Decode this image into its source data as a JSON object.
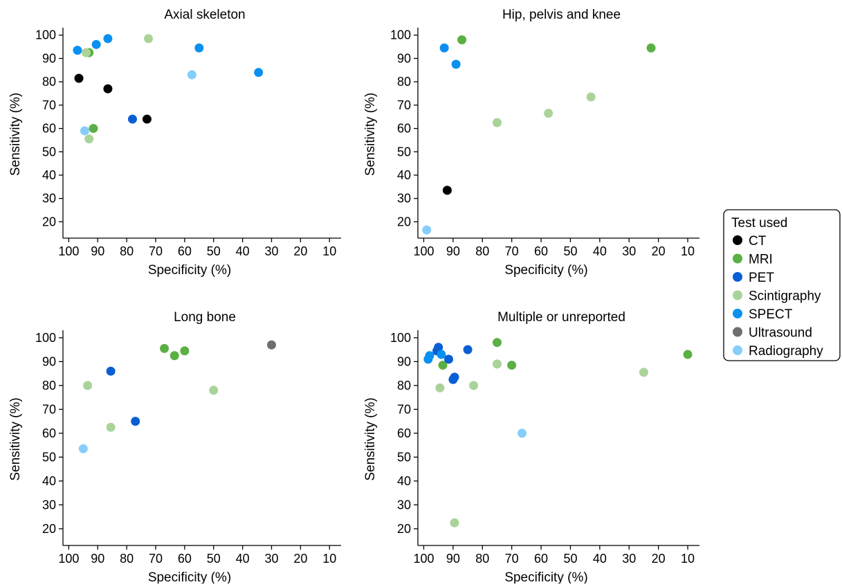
{
  "chart_data": {
    "type": "scatter",
    "x_axis_reversed": true,
    "grid": false,
    "legend": {
      "title": "Test used",
      "placement": "right",
      "entries": [
        {
          "name": "CT",
          "color": "#000000"
        },
        {
          "name": "MRI",
          "color": "#5bb044"
        },
        {
          "name": "PET",
          "color": "#0a5fd4"
        },
        {
          "name": "Scintigraphy",
          "color": "#aad39a"
        },
        {
          "name": "SPECT",
          "color": "#0a91ef"
        },
        {
          "name": "Ultrasound",
          "color": "#6e6e6e"
        },
        {
          "name": "Radiography",
          "color": "#86cdfa"
        }
      ]
    },
    "panels": [
      {
        "title": "Axial skeleton",
        "xlabel": "Specificity (%)",
        "ylabel": "Sensitivity (%)",
        "xlim": [
          102,
          6
        ],
        "ylim": [
          13,
          102
        ],
        "xticks": [
          100,
          90,
          80,
          70,
          60,
          50,
          40,
          30,
          20,
          10
        ],
        "yticks": [
          20,
          30,
          40,
          50,
          60,
          70,
          80,
          90,
          100
        ],
        "series": [
          {
            "name": "CT",
            "points": [
              [
                96.5,
                81.5
              ],
              [
                86.5,
                77
              ],
              [
                73,
                64
              ]
            ]
          },
          {
            "name": "MRI",
            "points": [
              [
                93,
                92.5
              ],
              [
                91.5,
                60
              ]
            ]
          },
          {
            "name": "PET",
            "points": [
              [
                78,
                64
              ]
            ]
          },
          {
            "name": "Scintigraphy",
            "points": [
              [
                94,
                92.5
              ],
              [
                72.5,
                98.5
              ],
              [
                93,
                55.5
              ]
            ]
          },
          {
            "name": "SPECT",
            "points": [
              [
                97,
                93.5
              ],
              [
                90.5,
                96
              ],
              [
                86.5,
                98.5
              ],
              [
                55,
                94.5
              ],
              [
                34.5,
                84
              ]
            ]
          },
          {
            "name": "Radiography",
            "points": [
              [
                57.5,
                83
              ],
              [
                94.5,
                59
              ]
            ]
          }
        ]
      },
      {
        "title": "Hip, pelvis and knee",
        "xlabel": "Specificity (%)",
        "ylabel": "Sensitivity (%)",
        "xlim": [
          102,
          6
        ],
        "ylim": [
          13,
          102
        ],
        "xticks": [
          100,
          90,
          80,
          70,
          60,
          50,
          40,
          30,
          20,
          10
        ],
        "yticks": [
          20,
          30,
          40,
          50,
          60,
          70,
          80,
          90,
          100
        ],
        "series": [
          {
            "name": "CT",
            "points": [
              [
                92,
                33.5
              ]
            ]
          },
          {
            "name": "MRI",
            "points": [
              [
                87,
                98
              ],
              [
                22.5,
                94.5
              ]
            ]
          },
          {
            "name": "Scintigraphy",
            "points": [
              [
                75,
                62.5
              ],
              [
                57.5,
                66.5
              ],
              [
                43,
                73.5
              ]
            ]
          },
          {
            "name": "SPECT",
            "points": [
              [
                93,
                94.5
              ],
              [
                89,
                87.5
              ]
            ]
          },
          {
            "name": "Radiography",
            "points": [
              [
                99,
                16.5
              ]
            ]
          }
        ]
      },
      {
        "title": "Long bone",
        "xlabel": "Specificity (%)",
        "ylabel": "Sensitivity (%)",
        "xlim": [
          102,
          6
        ],
        "ylim": [
          13,
          102
        ],
        "xticks": [
          100,
          90,
          80,
          70,
          60,
          50,
          40,
          30,
          20,
          10
        ],
        "yticks": [
          20,
          30,
          40,
          50,
          60,
          70,
          80,
          90,
          100
        ],
        "series": [
          {
            "name": "MRI",
            "points": [
              [
                67,
                95.5
              ],
              [
                63.5,
                92.5
              ],
              [
                60,
                94.5
              ]
            ]
          },
          {
            "name": "PET",
            "points": [
              [
                85.5,
                86
              ],
              [
                77,
                65
              ]
            ]
          },
          {
            "name": "Scintigraphy",
            "points": [
              [
                93.5,
                80
              ],
              [
                85.5,
                62.5
              ],
              [
                50,
                78
              ]
            ]
          },
          {
            "name": "Ultrasound",
            "points": [
              [
                30,
                97
              ]
            ]
          },
          {
            "name": "Radiography",
            "points": [
              [
                95,
                53.5
              ]
            ]
          }
        ]
      },
      {
        "title": "Multiple or unreported",
        "xlabel": "Specificity (%)",
        "ylabel": "Sensitivity (%)",
        "xlim": [
          102,
          6
        ],
        "ylim": [
          13,
          102
        ],
        "xticks": [
          100,
          90,
          80,
          70,
          60,
          50,
          40,
          30,
          20,
          10
        ],
        "yticks": [
          20,
          30,
          40,
          50,
          60,
          70,
          80,
          90,
          100
        ],
        "series": [
          {
            "name": "MRI",
            "points": [
              [
                93.5,
                88.5
              ],
              [
                75,
                98
              ],
              [
                70,
                88.5
              ],
              [
                10,
                93
              ]
            ]
          },
          {
            "name": "PET",
            "points": [
              [
                95.5,
                94.5
              ],
              [
                95,
                96
              ],
              [
                91.5,
                91
              ],
              [
                90,
                82.5
              ],
              [
                89.5,
                83.5
              ],
              [
                85,
                95
              ]
            ]
          },
          {
            "name": "Scintigraphy",
            "points": [
              [
                94.5,
                79
              ],
              [
                83,
                80
              ],
              [
                75,
                89
              ],
              [
                25,
                85.5
              ],
              [
                89.5,
                22.5
              ]
            ]
          },
          {
            "name": "SPECT",
            "points": [
              [
                98.5,
                91
              ],
              [
                98,
                92.5
              ],
              [
                94,
                93
              ]
            ]
          },
          {
            "name": "Radiography",
            "points": [
              [
                66.5,
                60
              ]
            ]
          }
        ]
      }
    ]
  }
}
